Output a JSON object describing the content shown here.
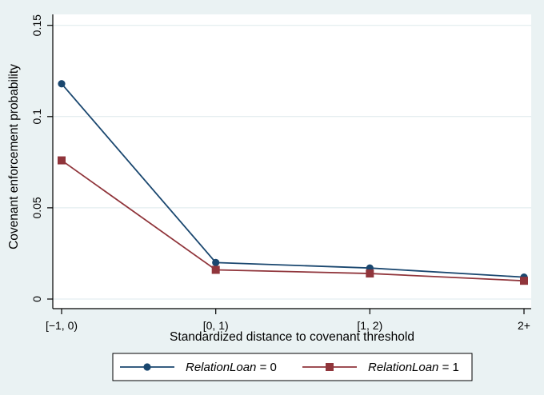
{
  "figure": {
    "background_color": "#eaf2f3",
    "plot_background_color": "#ffffff",
    "grid_color": "#dde9ec",
    "axis_color": "#000000",
    "legend_box_color": "#ffffff",
    "legend_border_color": "#000000"
  },
  "chart_data": {
    "type": "line",
    "title": "",
    "xlabel": "Standardized distance to covenant threshold",
    "ylabel": "Covenant enforcement probability",
    "categories": [
      "[−1, 0)",
      "[0, 1)",
      "[1, 2)",
      "2+"
    ],
    "yticks": {
      "values": [
        0,
        0.05,
        0.1,
        0.15
      ],
      "labels": [
        "0",
        "0.05",
        "0.1",
        "0.15"
      ]
    },
    "ylim": [
      0,
      0.156
    ],
    "grid": "horizontal",
    "legend_position": "bottom",
    "series": [
      {
        "label": "RelationLoan = 0",
        "label_var": "RelationLoan",
        "label_suffix": " = 0",
        "color": "#1a476f",
        "marker": "circle",
        "values": [
          0.118,
          0.02,
          0.017,
          0.012
        ]
      },
      {
        "label": "RelationLoan = 1",
        "label_var": "RelationLoan",
        "label_suffix": " = 1",
        "color": "#90353b",
        "marker": "square",
        "values": [
          0.076,
          0.016,
          0.014,
          0.01
        ]
      }
    ]
  }
}
